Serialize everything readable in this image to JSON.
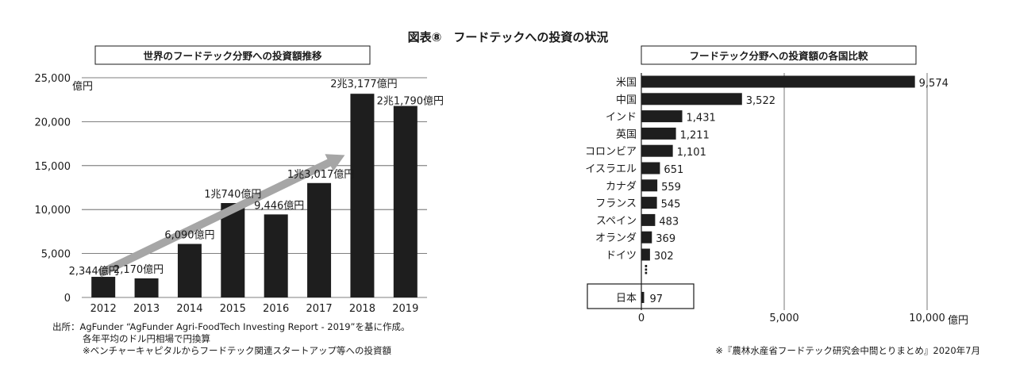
{
  "figure_title": "図表⑧　フードテックへの投資の状況",
  "left_chart_title": "世界のフードテック分野への投資額推移",
  "right_chart_title": "フードテック分野への投資額の各国比較",
  "colors": {
    "bar": "#1e1e1e",
    "arrow": "#a6a6a6",
    "grid": "#555555",
    "text": "#1a1a1a"
  },
  "chart_data": [
    {
      "type": "bar",
      "title": "世界のフードテック分野への投資額推移",
      "ylabel": "億円",
      "ylim": [
        0,
        25000
      ],
      "yticks": [
        0,
        5000,
        10000,
        15000,
        20000,
        25000
      ],
      "ytick_labels": [
        "0",
        "5,000",
        "10,000",
        "15,000",
        "20,000",
        "25,000"
      ],
      "grid": true,
      "categories": [
        "2012",
        "2013",
        "2014",
        "2015",
        "2016",
        "2017",
        "2018",
        "2019"
      ],
      "values": [
        2344,
        2170,
        6090,
        10740,
        9446,
        13017,
        23177,
        21790
      ],
      "data_labels": [
        "2,344億円",
        "2,170億円",
        "6,090億円",
        "1兆740億円",
        "9,446億円",
        "1兆3,017億円",
        "2兆3,177億円",
        "2兆1,790億円"
      ],
      "annotation": "upward-trend-arrow"
    },
    {
      "type": "bar",
      "orientation": "horizontal",
      "title": "フードテック分野への投資額の各国比較",
      "xlabel": "億円",
      "xlim": [
        0,
        10000
      ],
      "xticks": [
        0,
        5000,
        10000
      ],
      "xtick_labels": [
        "0",
        "5,000",
        "10,000"
      ],
      "grid": true,
      "categories": [
        "米国",
        "中国",
        "インド",
        "英国",
        "コロンビア",
        "イスラエル",
        "カナダ",
        "フランス",
        "スペイン",
        "オランダ",
        "ドイツ"
      ],
      "values": [
        9574,
        3522,
        1431,
        1211,
        1101,
        651,
        559,
        545,
        483,
        369,
        302
      ],
      "data_labels": [
        "9,574",
        "3,522",
        "1,431",
        "1,211",
        "1,101",
        "651",
        "559",
        "545",
        "483",
        "369",
        "302"
      ],
      "ellipsis": "⋮",
      "highlight": {
        "category": "日本",
        "value": 97,
        "label": "97"
      }
    }
  ],
  "source_note": {
    "line1": "出所：AgFunder “AgFunder Agri-FoodTech Investing Report - 2019”を基に作成。",
    "line2": "各年平均のドル円相場で円換算",
    "line3": "※ベンチャーキャピタルからフードテック関連スタートアップ等への投資額"
  },
  "right_note": "※『農林水産省フードテック研究会中間とりまとめ』2020年7月"
}
